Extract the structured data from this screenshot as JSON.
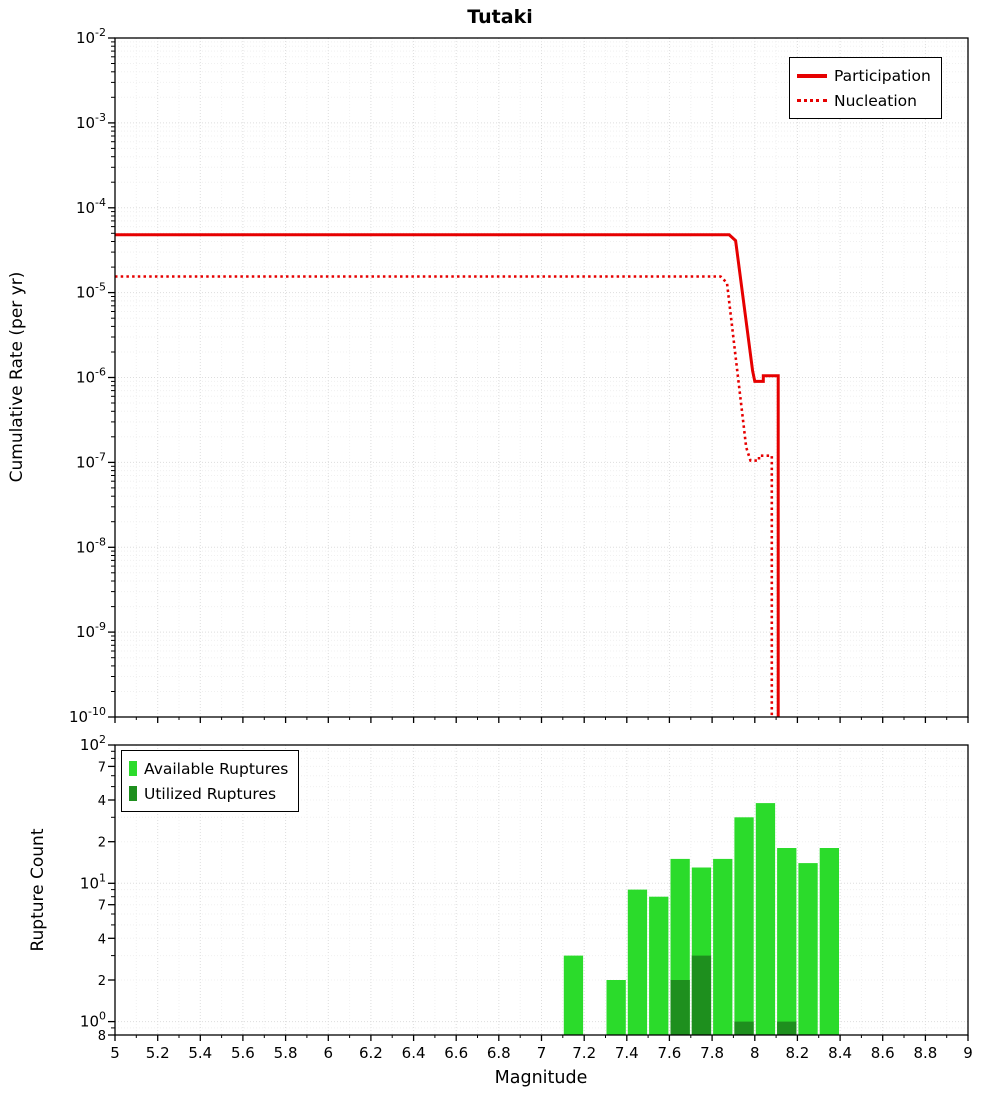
{
  "colors": {
    "line_red": "#e60000",
    "available_green": "#2bdb2b",
    "utilized_green": "#1e8f1e",
    "grid_major": "#dddddd",
    "grid_minor": "#f0f0f0",
    "axis_black": "#000000"
  },
  "chart_data": [
    {
      "type": "line",
      "title": "Tutaki",
      "ylabel": "Cumulative Rate (per yr)",
      "xlabel": "",
      "xlim": [
        5,
        9
      ],
      "ylim": [
        1e-10,
        0.01
      ],
      "y_scale": "log",
      "grid": true,
      "legend": {
        "position": "top-right",
        "entries": [
          {
            "label": "Participation",
            "line_style": "solid"
          },
          {
            "label": "Nucleation",
            "line_style": "dotted"
          }
        ]
      },
      "y_ticks": [
        {
          "value": 0.01,
          "label_base": "10",
          "label_exp": "-2"
        },
        {
          "value": 0.001,
          "label_base": "10",
          "label_exp": "-3"
        },
        {
          "value": 0.0001,
          "label_base": "10",
          "label_exp": "-4"
        },
        {
          "value": 1e-05,
          "label_base": "10",
          "label_exp": "-5"
        },
        {
          "value": 1e-06,
          "label_base": "10",
          "label_exp": "-6"
        },
        {
          "value": 1e-07,
          "label_base": "10",
          "label_exp": "-7"
        },
        {
          "value": 1e-08,
          "label_base": "10",
          "label_exp": "-8"
        },
        {
          "value": 1e-09,
          "label_base": "10",
          "label_exp": "-9"
        },
        {
          "value": 1e-10,
          "label_base": "10",
          "label_exp": "-10"
        }
      ],
      "series": [
        {
          "name": "Participation",
          "style": "solid",
          "color": "#e60000",
          "points": [
            [
              5,
              4.8e-05
            ],
            [
              7.88,
              4.8e-05
            ],
            [
              7.91,
              4.1e-05
            ],
            [
              7.99,
              1.2e-06
            ],
            [
              8.0,
              9e-07
            ],
            [
              8.04,
              9e-07
            ],
            [
              8.04,
              1.05e-06
            ],
            [
              8.11,
              1.05e-06
            ],
            [
              8.11,
              1e-12
            ]
          ]
        },
        {
          "name": "Nucleation",
          "style": "dotted",
          "color": "#e60000",
          "points": [
            [
              5,
              1.55e-05
            ],
            [
              7.84,
              1.55e-05
            ],
            [
              7.87,
              1.3e-05
            ],
            [
              7.96,
              1.5e-07
            ],
            [
              7.98,
              1.05e-07
            ],
            [
              8.02,
              1.05e-07
            ],
            [
              8.02,
              1.2e-07
            ],
            [
              8.08,
              1.2e-07
            ],
            [
              8.08,
              1e-12
            ]
          ]
        }
      ]
    },
    {
      "type": "bar",
      "title": "",
      "ylabel": "Rupture Count",
      "xlabel": "Magnitude",
      "xlim": [
        5,
        9
      ],
      "ylim": [
        0.8,
        100
      ],
      "y_scale": "log",
      "grid": true,
      "bar_width": 0.1,
      "legend": {
        "position": "top-left",
        "entries": [
          {
            "label": "Available Ruptures",
            "color": "#2bdb2b"
          },
          {
            "label": "Utilized Ruptures",
            "color": "#1e8f1e"
          }
        ]
      },
      "y_ticks": [
        {
          "value": 100,
          "label_base": "10",
          "label_exp": "2"
        },
        {
          "value": 70,
          "label": "7"
        },
        {
          "value": 40,
          "label": "4"
        },
        {
          "value": 20,
          "label": "2"
        },
        {
          "value": 10,
          "label_base": "10",
          "label_exp": "1"
        },
        {
          "value": 7,
          "label": "7"
        },
        {
          "value": 4,
          "label": "4"
        },
        {
          "value": 2,
          "label": "2"
        },
        {
          "value": 1,
          "label_base": "10",
          "label_exp": "0"
        },
        {
          "value": 0.8,
          "label": "8"
        }
      ],
      "x_ticks": [
        {
          "value": 5,
          "label": "5"
        },
        {
          "value": 5.2,
          "label": "5.2"
        },
        {
          "value": 5.4,
          "label": "5.4"
        },
        {
          "value": 5.6,
          "label": "5.6"
        },
        {
          "value": 5.8,
          "label": "5.8"
        },
        {
          "value": 6,
          "label": "6"
        },
        {
          "value": 6.2,
          "label": "6.2"
        },
        {
          "value": 6.4,
          "label": "6.4"
        },
        {
          "value": 6.6,
          "label": "6.6"
        },
        {
          "value": 6.8,
          "label": "6.8"
        },
        {
          "value": 7,
          "label": "7"
        },
        {
          "value": 7.2,
          "label": "7.2"
        },
        {
          "value": 7.4,
          "label": "7.4"
        },
        {
          "value": 7.6,
          "label": "7.6"
        },
        {
          "value": 7.8,
          "label": "7.8"
        },
        {
          "value": 8,
          "label": "8"
        },
        {
          "value": 8.2,
          "label": "8.2"
        },
        {
          "value": 8.4,
          "label": "8.4"
        },
        {
          "value": 8.6,
          "label": "8.6"
        },
        {
          "value": 8.8,
          "label": "8.8"
        },
        {
          "value": 9,
          "label": "9"
        }
      ],
      "series": [
        {
          "name": "Available Ruptures",
          "color": "#2bdb2b",
          "bars": [
            [
              7.15,
              3
            ],
            [
              7.35,
              2
            ],
            [
              7.45,
              9
            ],
            [
              7.55,
              8
            ],
            [
              7.65,
              15
            ],
            [
              7.75,
              13
            ],
            [
              7.85,
              15
            ],
            [
              7.95,
              30
            ],
            [
              8.05,
              38
            ],
            [
              8.15,
              18
            ],
            [
              8.25,
              14
            ],
            [
              8.35,
              18
            ]
          ]
        },
        {
          "name": "Utilized Ruptures",
          "color": "#1e8f1e",
          "bars": [
            [
              7.65,
              2
            ],
            [
              7.75,
              3
            ],
            [
              7.95,
              1
            ],
            [
              8.15,
              1
            ]
          ]
        }
      ]
    }
  ]
}
